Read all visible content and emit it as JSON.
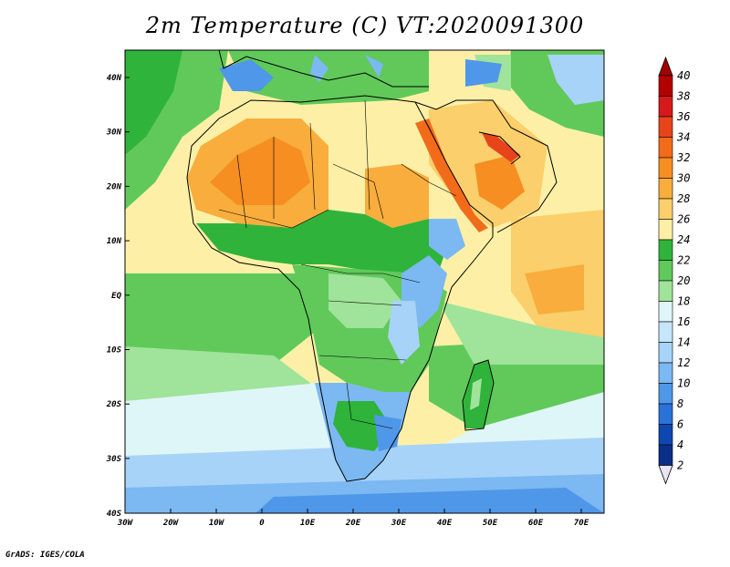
{
  "title": "2m Temperature (C) VT:2020091300",
  "footer": "GrADS: IGES/COLA",
  "map": {
    "y_ticks": [
      "40N",
      "30N",
      "20N",
      "10N",
      "EQ",
      "10S",
      "20S",
      "30S",
      "40S"
    ],
    "x_ticks": [
      "30W",
      "20W",
      "10W",
      "0",
      "10E",
      "20E",
      "30E",
      "40E",
      "50E",
      "60E",
      "70E"
    ],
    "lon_range": [
      -30,
      75
    ],
    "lat_range": [
      -40,
      45
    ]
  },
  "colorbar": {
    "labels": [
      "40",
      "38",
      "36",
      "34",
      "32",
      "30",
      "28",
      "26",
      "24",
      "22",
      "20",
      "18",
      "16",
      "14",
      "12",
      "10",
      "8",
      "6",
      "4",
      "2"
    ],
    "colors": [
      "#b30000",
      "#d7191c",
      "#e8441c",
      "#f26b1a",
      "#f68e22",
      "#f8ad3c",
      "#fbcf6b",
      "#fdf0a6",
      "#2fb33b",
      "#60c95a",
      "#a0e39a",
      "#dff6f8",
      "#c5e6fb",
      "#a7d3f8",
      "#7cb8f2",
      "#4f97e8",
      "#2872d8",
      "#0d47b0",
      "#0a2f86",
      "#e7e5f6"
    ],
    "top_arrow_color": "#a10000",
    "bottom_arrow_color": "#e7e5f6"
  }
}
